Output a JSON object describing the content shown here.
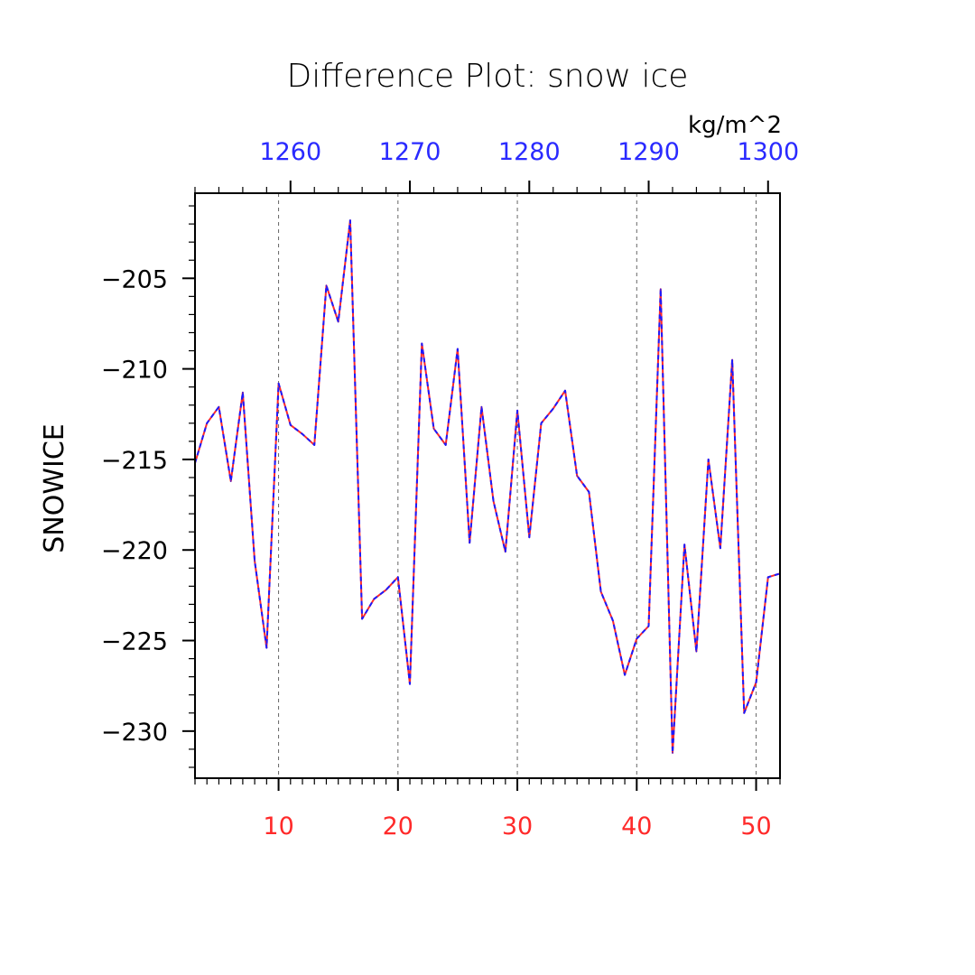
{
  "chart_data": {
    "type": "line",
    "title": "Difference Plot: snow ice",
    "units": "kg/m^2",
    "ylabel": "SNOWICE",
    "xlabel": "",
    "xlim": [
      3,
      52
    ],
    "ylim": [
      -232.6,
      -200.3
    ],
    "top_xlim": [
      1252,
      1301
    ],
    "bottom_ticks": [
      10,
      20,
      30,
      40,
      50
    ],
    "bottom_tick_labels": [
      "10",
      "20",
      "30",
      "40",
      "50"
    ],
    "top_ticks": [
      1260,
      1270,
      1280,
      1290,
      1300
    ],
    "top_tick_labels": [
      "1260",
      "1270",
      "1280",
      "1290",
      "1300"
    ],
    "y_ticks": [
      -205,
      -210,
      -215,
      -220,
      -225,
      -230
    ],
    "y_tick_labels": [
      "−205",
      "−210",
      "−215",
      "−220",
      "−225",
      "−230"
    ],
    "grid": "vertical dashed at major x ticks",
    "colors": {
      "bottom_axis": "#ff2a2a",
      "top_axis": "#2a2aff",
      "line_solid": "#ff2a2a",
      "line_dashed": "#1a1aff"
    },
    "series": [
      {
        "x": [
          3,
          4,
          5,
          6,
          7,
          8,
          9,
          10,
          11,
          12,
          13,
          14,
          15,
          16,
          17,
          18,
          19,
          20,
          21,
          22,
          23,
          24,
          25,
          26,
          27,
          28,
          29,
          30,
          31,
          32,
          33,
          34,
          35,
          36,
          37,
          38,
          39,
          40,
          41,
          42,
          43,
          44,
          45,
          46,
          47,
          48,
          49,
          50,
          51,
          52
        ],
        "y": [
          -215.2,
          -213.0,
          -212.1,
          -216.2,
          -211.3,
          -220.6,
          -225.4,
          -210.8,
          -213.1,
          -213.6,
          -214.2,
          -205.4,
          -207.4,
          -201.8,
          -223.8,
          -222.7,
          -222.2,
          -221.5,
          -227.4,
          -208.6,
          -213.3,
          -214.2,
          -208.9,
          -219.6,
          -212.1,
          -217.3,
          -220.1,
          -212.3,
          -219.3,
          -213.0,
          -212.2,
          -211.2,
          -215.9,
          -216.8,
          -222.3,
          -223.9,
          -226.9,
          -224.9,
          -224.2,
          -205.6,
          -231.2,
          -219.7,
          -225.6,
          -215.0,
          -219.9,
          -209.5,
          -229.0,
          -227.3,
          -221.5,
          -221.3
        ]
      }
    ]
  }
}
